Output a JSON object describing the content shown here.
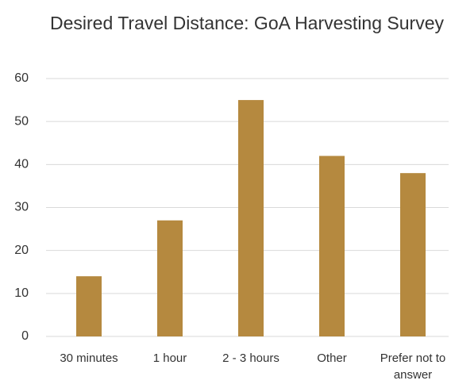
{
  "chart_data": {
    "type": "bar",
    "title": "Desired Travel Distance: GoA Harvesting Survey",
    "categories": [
      "30 minutes",
      "1 hour",
      "2 - 3 hours",
      "Other",
      "Prefer not to answer"
    ],
    "values": [
      14,
      27,
      55,
      42,
      38
    ],
    "color": "#b5893f",
    "ylim": [
      0,
      60
    ],
    "yticks": [
      0,
      10,
      20,
      30,
      40,
      50,
      60
    ],
    "grid": true
  }
}
